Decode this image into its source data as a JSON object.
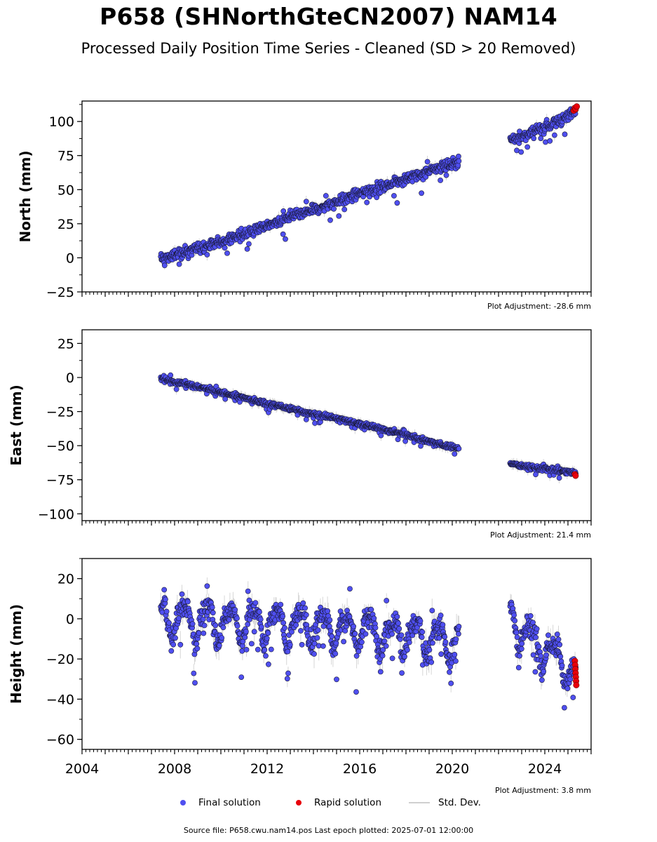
{
  "figure": {
    "title": "P658 (SHNorthGteCN2007) NAM14",
    "subtitle": "Processed Daily Position Time Series - Cleaned (SD > 20 Removed)",
    "legend": {
      "final": "Final solution",
      "rapid": "Rapid solution",
      "std": "Std. Dev."
    },
    "source": "Source file: P658.cwu.nam14.pos  Last epoch plotted: 2025-07-01 12:00:00"
  },
  "colors": {
    "final": "#4f4ff0",
    "rapid": "#e8000b",
    "std": "#b4b4b4",
    "edge": "#1a1a3a"
  },
  "chart_data": [
    {
      "type": "scatter",
      "title": "",
      "xlabel": "",
      "ylabel": "North (mm)",
      "xlim": [
        2004,
        2026
      ],
      "ylim": [
        -25,
        115
      ],
      "yticks": [
        -25,
        0,
        25,
        50,
        75,
        100
      ],
      "ytick_labels": [
        "−25",
        "0",
        "25",
        "50",
        "75",
        "100"
      ],
      "xticks": [
        2004,
        2008,
        2012,
        2016,
        2020,
        2024
      ],
      "adjustment": "Plot Adjustment: -28.6 mm",
      "series": [
        {
          "name": "Final solution",
          "kind": "trend",
          "segments": [
            {
              "x": [
                2007.4,
                2008.0,
                2009.0,
                2010.0,
                2011.0,
                2012.0,
                2013.0,
                2014.0,
                2015.0,
                2016.0,
                2017.0,
                2018.0,
                2019.0,
                2020.3
              ],
              "y": [
                -1,
                2,
                7,
                12,
                17,
                24,
                30,
                35,
                41,
                47,
                52,
                58,
                64,
                71
              ]
            },
            {
              "x": [
                2022.5,
                2023.0,
                2024.0,
                2025.0,
                2025.35
              ],
              "y": [
                87,
                89,
                96,
                104,
                109
              ]
            }
          ],
          "scatter": 3.5
        },
        {
          "name": "Rapid solution",
          "x": [
            2025.25,
            2025.3,
            2025.33,
            2025.38
          ],
          "y": [
            108,
            110,
            109,
            111
          ]
        }
      ]
    },
    {
      "type": "scatter",
      "title": "",
      "xlabel": "",
      "ylabel": "East (mm)",
      "xlim": [
        2004,
        2026
      ],
      "ylim": [
        -105,
        35
      ],
      "yticks": [
        -100,
        -75,
        -50,
        -25,
        0,
        25
      ],
      "ytick_labels": [
        "−100",
        "−75",
        "−50",
        "−25",
        "0",
        "25"
      ],
      "xticks": [
        2004,
        2008,
        2012,
        2016,
        2020,
        2024
      ],
      "adjustment": "Plot Adjustment: 21.4 mm",
      "series": [
        {
          "name": "Final solution",
          "kind": "trend",
          "segments": [
            {
              "x": [
                2007.4,
                2008.0,
                2009.0,
                2010.0,
                2011.0,
                2012.0,
                2013.0,
                2014.0,
                2015.0,
                2016.0,
                2017.0,
                2018.0,
                2019.0,
                2020.3
              ],
              "y": [
                0,
                -3,
                -7,
                -11,
                -15,
                -19,
                -23,
                -27,
                -30,
                -34,
                -38,
                -42,
                -47,
                -52
              ]
            },
            {
              "x": [
                2022.5,
                2023.0,
                2024.0,
                2025.0,
                2025.35
              ],
              "y": [
                -63,
                -65,
                -67,
                -69,
                -70
              ]
            }
          ],
          "scatter": 1.5
        },
        {
          "name": "Rapid solution",
          "x": [
            2025.3,
            2025.33
          ],
          "y": [
            -71,
            -72
          ]
        }
      ]
    },
    {
      "type": "scatter",
      "title": "",
      "xlabel": "",
      "ylabel": "Height (mm)",
      "xlim": [
        2004,
        2026
      ],
      "ylim": [
        -65,
        30
      ],
      "yticks": [
        -60,
        -40,
        -20,
        0,
        20
      ],
      "ytick_labels": [
        "−60",
        "−40",
        "−20",
        "0",
        "20"
      ],
      "xticks": [
        2004,
        2008,
        2012,
        2016,
        2020,
        2024
      ],
      "xtick_labels": [
        "2004",
        "2008",
        "2012",
        "2016",
        "2020",
        "2024"
      ],
      "adjustment": "Plot Adjustment: 3.8 mm",
      "series": [
        {
          "name": "Final solution",
          "kind": "seasonal",
          "segments": [
            {
              "x": [
                2007.4,
                2012.0,
                2016.0,
                2020.3
              ],
              "y": [
                0,
                -2,
                -5,
                -12
              ]
            },
            {
              "x": [
                2022.5,
                2024.0,
                2025.35
              ],
              "y": [
                0,
                -15,
                -28
              ]
            }
          ],
          "amplitude": 8,
          "scatter": 5
        },
        {
          "name": "Rapid solution",
          "x": [
            2025.3,
            2025.31,
            2025.32,
            2025.33,
            2025.34,
            2025.35,
            2025.36
          ],
          "y": [
            -21,
            -23,
            -25,
            -27,
            -29,
            -31,
            -33
          ]
        }
      ]
    }
  ]
}
